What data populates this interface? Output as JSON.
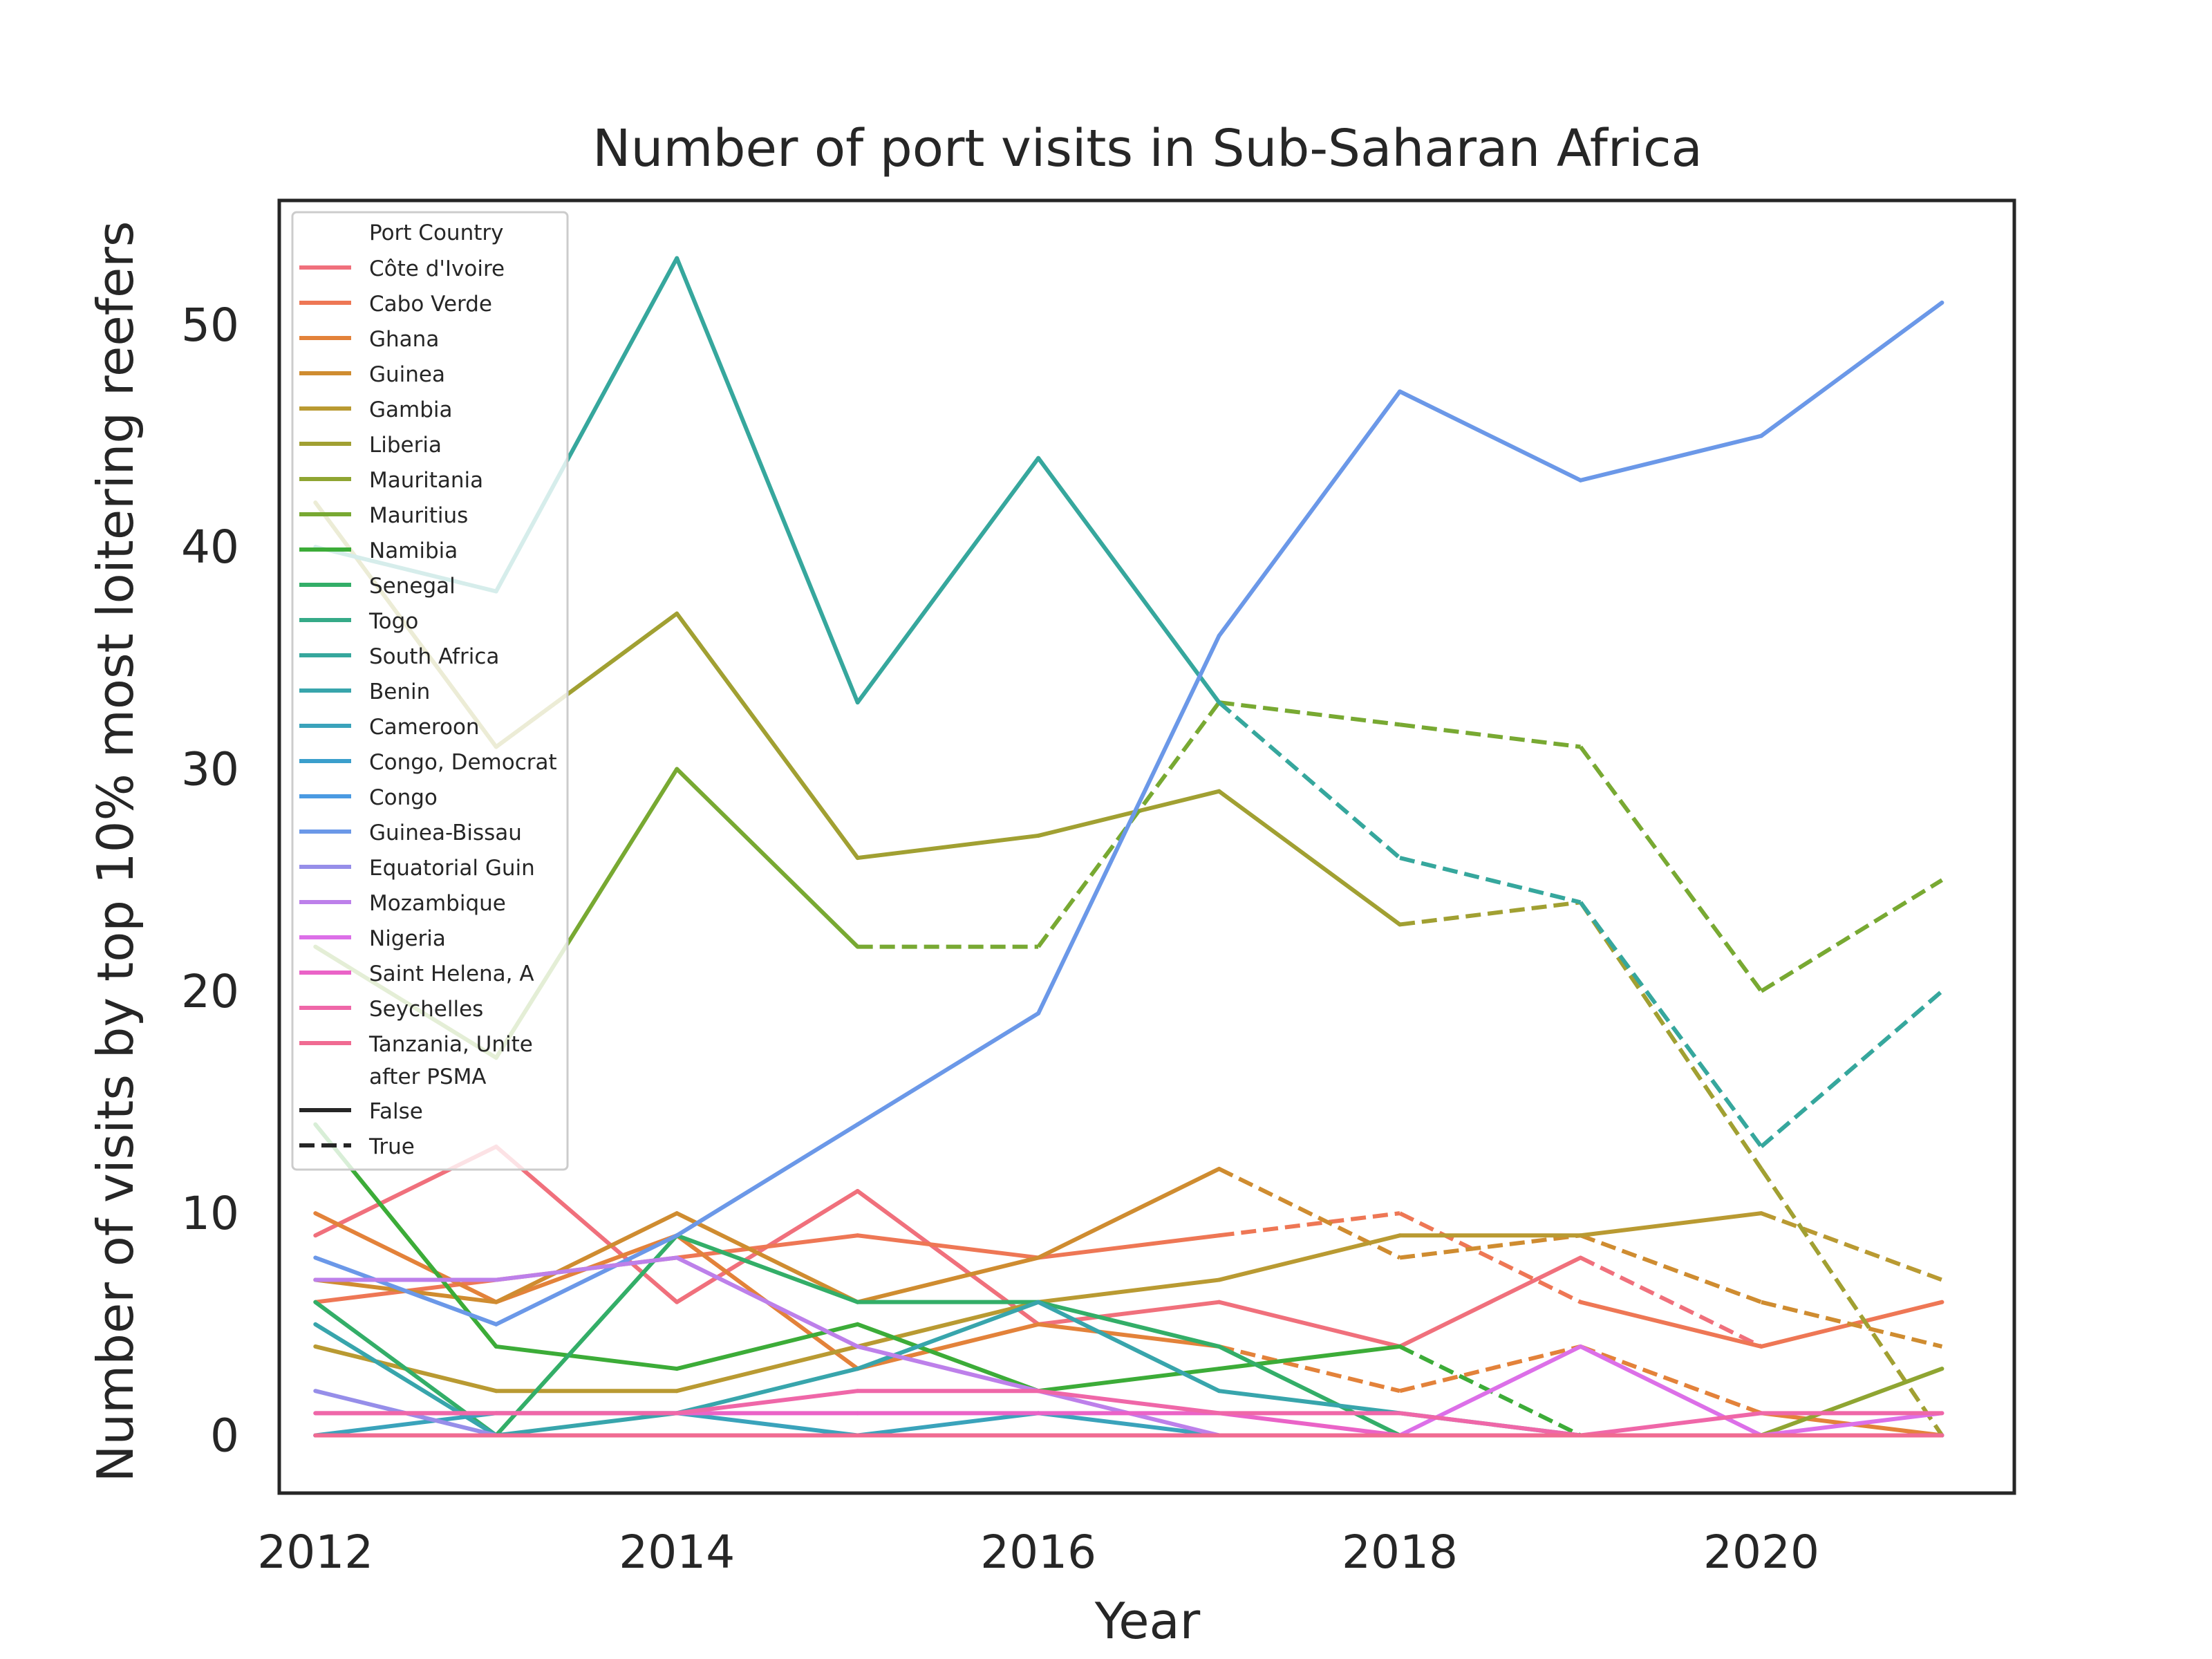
{
  "chart_data": {
    "type": "line",
    "title": "Number of port visits in Sub-Saharan Africa",
    "xlabel": "Year",
    "ylabel": "Number of visits by top 10% most loitering reefers",
    "xlim": [
      2011.8,
      2021.4
    ],
    "ylim": [
      -2.6,
      55.6
    ],
    "xticks": [
      2012,
      2014,
      2016,
      2018,
      2020
    ],
    "yticks": [
      0,
      10,
      20,
      30,
      40,
      50
    ],
    "grid": false,
    "legend": {
      "placement": "top-left",
      "hue_title": "Port Country",
      "style_title": "after PSMA",
      "style_entries": [
        {
          "label": "False",
          "dash": "solid"
        },
        {
          "label": "True",
          "dash": "dashed"
        }
      ]
    },
    "series": [
      {
        "name": "Côte d'Ivoire",
        "color": "#f0707c",
        "x": [
          2012,
          2013,
          2014,
          2015,
          2016,
          2017,
          2018,
          2019,
          2020
        ],
        "y": [
          9,
          13,
          6,
          11,
          5,
          6,
          4,
          8,
          4
        ],
        "after_psma": [
          false,
          false,
          false,
          false,
          false,
          false,
          false,
          true,
          true
        ]
      },
      {
        "name": "Cabo Verde",
        "color": "#ee7755",
        "x": [
          2012,
          2013,
          2014,
          2015,
          2016,
          2017,
          2018,
          2019,
          2020,
          2021
        ],
        "y": [
          6,
          7,
          8,
          9,
          8,
          9,
          10,
          6,
          4,
          6
        ],
        "after_psma": [
          false,
          false,
          false,
          false,
          false,
          true,
          true,
          true,
          false,
          false
        ]
      },
      {
        "name": "Ghana",
        "color": "#e3823a",
        "x": [
          2012,
          2013,
          2014,
          2015,
          2016,
          2017,
          2018,
          2019,
          2020,
          2021
        ],
        "y": [
          10,
          6,
          9,
          3,
          5,
          4,
          2,
          4,
          1,
          0
        ],
        "after_psma": [
          false,
          false,
          false,
          false,
          false,
          true,
          true,
          true,
          true,
          false
        ]
      },
      {
        "name": "Guinea",
        "color": "#cf8c30",
        "x": [
          2012,
          2013,
          2014,
          2015,
          2016,
          2017,
          2018,
          2019,
          2020,
          2021
        ],
        "y": [
          7,
          6,
          10,
          6,
          8,
          12,
          8,
          9,
          6,
          4
        ],
        "after_psma": [
          false,
          false,
          false,
          false,
          false,
          true,
          true,
          true,
          true,
          true
        ]
      },
      {
        "name": "Gambia",
        "color": "#b99a32",
        "x": [
          2012,
          2013,
          2014,
          2015,
          2016,
          2017,
          2018,
          2019,
          2020,
          2021
        ],
        "y": [
          4,
          2,
          2,
          4,
          6,
          7,
          9,
          9,
          10,
          7
        ],
        "after_psma": [
          false,
          false,
          false,
          false,
          false,
          false,
          false,
          false,
          true,
          true
        ]
      },
      {
        "name": "Liberia",
        "color": "#a1a032",
        "x": [
          2012,
          2013,
          2014,
          2015,
          2016,
          2017,
          2018,
          2019,
          2020,
          2021
        ],
        "y": [
          42,
          31,
          37,
          26,
          27,
          29,
          23,
          24,
          12,
          0
        ],
        "after_psma": [
          false,
          false,
          false,
          false,
          false,
          false,
          true,
          true,
          true,
          true
        ]
      },
      {
        "name": "Mauritania",
        "color": "#8fa532",
        "x": [
          2012,
          2013,
          2014,
          2015,
          2016,
          2017,
          2018,
          2019,
          2020,
          2021
        ],
        "y": [
          0,
          0,
          0,
          0,
          0,
          0,
          0,
          0,
          0,
          3
        ],
        "after_psma": [
          false,
          false,
          false,
          false,
          false,
          false,
          false,
          false,
          false,
          true
        ]
      },
      {
        "name": "Mauritius",
        "color": "#78a932",
        "x": [
          2012,
          2013,
          2014,
          2015,
          2016,
          2017,
          2018,
          2019,
          2020,
          2021
        ],
        "y": [
          22,
          17,
          30,
          22,
          22,
          33,
          32,
          31,
          20,
          25
        ],
        "after_psma": [
          false,
          false,
          false,
          true,
          true,
          true,
          true,
          true,
          true,
          true
        ]
      },
      {
        "name": "Namibia",
        "color": "#3cac38",
        "x": [
          2012,
          2013,
          2014,
          2015,
          2016,
          2017,
          2018,
          2019,
          2020,
          2021
        ],
        "y": [
          14,
          4,
          3,
          5,
          2,
          3,
          4,
          0,
          0,
          0
        ],
        "after_psma": [
          false,
          false,
          false,
          false,
          false,
          false,
          true,
          true,
          false,
          false
        ]
      },
      {
        "name": "Senegal",
        "color": "#33ae68",
        "x": [
          2012,
          2013,
          2014,
          2015,
          2016,
          2017,
          2018,
          2019,
          2020,
          2021
        ],
        "y": [
          6,
          0,
          9,
          6,
          6,
          4,
          0,
          0,
          0,
          0
        ],
        "after_psma": [
          false,
          false,
          false,
          false,
          false,
          false,
          true,
          false,
          false,
          false
        ]
      },
      {
        "name": "Togo",
        "color": "#35aa88",
        "x": [
          2012,
          2013,
          2014,
          2015,
          2016,
          2017,
          2018,
          2019,
          2020,
          2021
        ],
        "y": [
          0,
          0,
          0,
          0,
          0,
          0,
          0,
          0,
          0,
          0
        ],
        "after_psma": [
          false,
          false,
          false,
          false,
          false,
          false,
          false,
          false,
          false,
          false
        ]
      },
      {
        "name": "South Africa",
        "color": "#36a79d",
        "x": [
          2012,
          2013,
          2014,
          2015,
          2016,
          2017,
          2018,
          2019,
          2020,
          2021
        ],
        "y": [
          40,
          38,
          53,
          33,
          44,
          33,
          26,
          24,
          13,
          20
        ],
        "after_psma": [
          false,
          false,
          false,
          false,
          false,
          true,
          true,
          true,
          true,
          true
        ]
      },
      {
        "name": "Benin",
        "color": "#38a5ac",
        "x": [
          2012,
          2013,
          2014,
          2015,
          2016,
          2017,
          2018,
          2019,
          2020,
          2021
        ],
        "y": [
          5,
          0,
          1,
          3,
          6,
          2,
          1,
          0,
          0,
          0
        ],
        "after_psma": [
          false,
          false,
          false,
          false,
          false,
          false,
          false,
          false,
          false,
          false
        ]
      },
      {
        "name": "Cameroon",
        "color": "#3aa3bb",
        "x": [
          2012,
          2013,
          2014,
          2015,
          2016,
          2017,
          2018,
          2019,
          2020,
          2021
        ],
        "y": [
          0,
          1,
          1,
          0,
          1,
          0,
          0,
          0,
          0,
          0
        ],
        "after_psma": [
          false,
          false,
          false,
          false,
          false,
          false,
          false,
          false,
          false,
          false
        ]
      },
      {
        "name": "Congo, Democrat",
        "color": "#3b9fcc",
        "x": [
          2012,
          2013,
          2014,
          2015,
          2016,
          2017,
          2018,
          2019,
          2020,
          2021
        ],
        "y": [
          0,
          0,
          0,
          0,
          0,
          0,
          0,
          0,
          0,
          0
        ],
        "after_psma": [
          false,
          false,
          false,
          false,
          false,
          false,
          false,
          false,
          false,
          false
        ]
      },
      {
        "name": "Congo",
        "color": "#4a9ae2",
        "x": [
          2012,
          2013,
          2014,
          2015,
          2016,
          2017,
          2018,
          2019,
          2020,
          2021
        ],
        "y": [
          0,
          0,
          0,
          0,
          0,
          0,
          0,
          0,
          0,
          0
        ],
        "after_psma": [
          false,
          false,
          false,
          false,
          false,
          false,
          false,
          false,
          false,
          false
        ]
      },
      {
        "name": "Guinea-Bissau",
        "color": "#6b98e8",
        "x": [
          2012,
          2013,
          2014,
          2015,
          2016,
          2017,
          2018,
          2019,
          2020,
          2021
        ],
        "y": [
          8,
          5,
          9,
          14,
          19,
          36,
          47,
          43,
          45,
          51
        ],
        "after_psma": [
          false,
          false,
          false,
          false,
          false,
          false,
          false,
          false,
          false,
          false
        ]
      },
      {
        "name": "Equatorial Guin",
        "color": "#968ee9",
        "x": [
          2012,
          2013,
          2014,
          2015,
          2016,
          2017,
          2018,
          2019,
          2020,
          2021
        ],
        "y": [
          2,
          0,
          0,
          0,
          0,
          0,
          0,
          0,
          0,
          0
        ],
        "after_psma": [
          false,
          false,
          false,
          false,
          false,
          false,
          false,
          false,
          false,
          false
        ]
      },
      {
        "name": "Mozambique",
        "color": "#bd80ea",
        "x": [
          2012,
          2013,
          2014,
          2015,
          2016,
          2017,
          2018,
          2019,
          2020,
          2021
        ],
        "y": [
          7,
          7,
          8,
          4,
          2,
          0,
          0,
          0,
          0,
          0
        ],
        "after_psma": [
          false,
          false,
          false,
          false,
          false,
          false,
          false,
          false,
          false,
          false
        ]
      },
      {
        "name": "Nigeria",
        "color": "#dc6fe8",
        "x": [
          2012,
          2013,
          2014,
          2015,
          2016,
          2017,
          2018,
          2019,
          2020,
          2021
        ],
        "y": [
          0,
          0,
          0,
          0,
          0,
          0,
          0,
          4,
          0,
          1
        ],
        "after_psma": [
          false,
          false,
          false,
          false,
          false,
          false,
          false,
          false,
          false,
          false
        ]
      },
      {
        "name": "Saint Helena, A",
        "color": "#ea63c7",
        "x": [
          2012,
          2013,
          2014,
          2015,
          2016,
          2017,
          2018,
          2019,
          2020,
          2021
        ],
        "y": [
          1,
          1,
          1,
          1,
          1,
          1,
          0,
          0,
          0,
          0
        ],
        "after_psma": [
          false,
          false,
          false,
          false,
          false,
          false,
          false,
          false,
          false,
          false
        ]
      },
      {
        "name": "Seychelles",
        "color": "#ef67a8",
        "x": [
          2012,
          2013,
          2014,
          2015,
          2016,
          2017,
          2018,
          2019,
          2020,
          2021
        ],
        "y": [
          1,
          1,
          1,
          2,
          2,
          1,
          1,
          0,
          1,
          1
        ],
        "after_psma": [
          false,
          false,
          false,
          false,
          false,
          false,
          false,
          false,
          false,
          false
        ]
      },
      {
        "name": "Tanzania, Unite",
        "color": "#f06b92",
        "x": [
          2012,
          2013,
          2014,
          2015,
          2016,
          2017,
          2018,
          2019,
          2020,
          2021
        ],
        "y": [
          0,
          0,
          0,
          0,
          0,
          0,
          0,
          0,
          0,
          0
        ],
        "after_psma": [
          false,
          false,
          false,
          false,
          false,
          false,
          false,
          false,
          false,
          false
        ]
      }
    ]
  }
}
